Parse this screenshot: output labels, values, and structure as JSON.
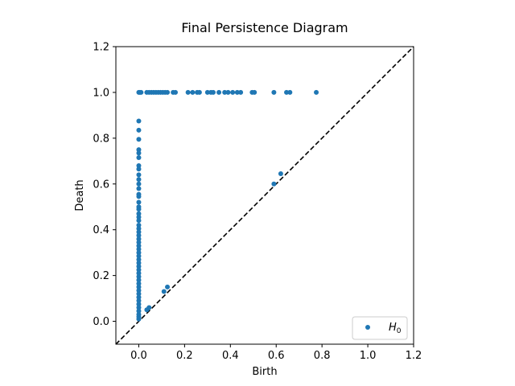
{
  "chart_data": {
    "type": "scatter",
    "title": "Final Persistence Diagram",
    "xlabel": "Birth",
    "ylabel": "Death",
    "xlim": [
      -0.1,
      1.2
    ],
    "ylim": [
      -0.1,
      1.2
    ],
    "xticks": [
      "0.0",
      "0.2",
      "0.4",
      "0.6",
      "0.8",
      "1.0",
      "1.2"
    ],
    "yticks": [
      "0.0",
      "0.2",
      "0.4",
      "0.6",
      "0.8",
      "1.0",
      "1.2"
    ],
    "grid": false,
    "diagonal": {
      "style": "dashed",
      "color": "#000000"
    },
    "legend": {
      "position": "lower-right",
      "label": "H",
      "subscript": "0"
    },
    "series": [
      {
        "name": "H0",
        "color": "#1f77b4",
        "points": [
          [
            0.0,
            1.0
          ],
          [
            0.005,
            1.0
          ],
          [
            0.01,
            1.0
          ],
          [
            0.035,
            1.0
          ],
          [
            0.045,
            1.0
          ],
          [
            0.055,
            1.0
          ],
          [
            0.065,
            1.0
          ],
          [
            0.075,
            1.0
          ],
          [
            0.085,
            1.0
          ],
          [
            0.095,
            1.0
          ],
          [
            0.105,
            1.0
          ],
          [
            0.115,
            1.0
          ],
          [
            0.125,
            1.0
          ],
          [
            0.15,
            1.0
          ],
          [
            0.16,
            1.0
          ],
          [
            0.215,
            1.0
          ],
          [
            0.235,
            1.0
          ],
          [
            0.255,
            1.0
          ],
          [
            0.265,
            1.0
          ],
          [
            0.3,
            1.0
          ],
          [
            0.315,
            1.0
          ],
          [
            0.325,
            1.0
          ],
          [
            0.35,
            1.0
          ],
          [
            0.375,
            1.0
          ],
          [
            0.39,
            1.0
          ],
          [
            0.41,
            1.0
          ],
          [
            0.43,
            1.0
          ],
          [
            0.445,
            1.0
          ],
          [
            0.495,
            1.0
          ],
          [
            0.505,
            1.0
          ],
          [
            0.59,
            1.0
          ],
          [
            0.645,
            1.0
          ],
          [
            0.66,
            1.0
          ],
          [
            0.775,
            1.0
          ],
          [
            0.0,
            0.875
          ],
          [
            0.0,
            0.835
          ],
          [
            0.0,
            0.795
          ],
          [
            0.0,
            0.75
          ],
          [
            0.0,
            0.735
          ],
          [
            0.0,
            0.715
          ],
          [
            0.0,
            0.68
          ],
          [
            0.0,
            0.665
          ],
          [
            0.0,
            0.64
          ],
          [
            0.0,
            0.62
          ],
          [
            0.0,
            0.6
          ],
          [
            0.0,
            0.58
          ],
          [
            0.0,
            0.555
          ],
          [
            0.0,
            0.545
          ],
          [
            0.0,
            0.52
          ],
          [
            0.0,
            0.5
          ],
          [
            0.0,
            0.49
          ],
          [
            0.0,
            0.47
          ],
          [
            0.0,
            0.455
          ],
          [
            0.0,
            0.44
          ],
          [
            0.0,
            0.42
          ],
          [
            0.0,
            0.405
          ],
          [
            0.0,
            0.39
          ],
          [
            0.0,
            0.375
          ],
          [
            0.0,
            0.36
          ],
          [
            0.0,
            0.345
          ],
          [
            0.0,
            0.33
          ],
          [
            0.0,
            0.315
          ],
          [
            0.0,
            0.3
          ],
          [
            0.0,
            0.285
          ],
          [
            0.0,
            0.27
          ],
          [
            0.0,
            0.255
          ],
          [
            0.0,
            0.24
          ],
          [
            0.0,
            0.225
          ],
          [
            0.0,
            0.21
          ],
          [
            0.0,
            0.195
          ],
          [
            0.0,
            0.18
          ],
          [
            0.0,
            0.165
          ],
          [
            0.0,
            0.15
          ],
          [
            0.0,
            0.135
          ],
          [
            0.0,
            0.12
          ],
          [
            0.0,
            0.105
          ],
          [
            0.0,
            0.09
          ],
          [
            0.0,
            0.075
          ],
          [
            0.0,
            0.06
          ],
          [
            0.0,
            0.045
          ],
          [
            0.0,
            0.03
          ],
          [
            0.0,
            0.02
          ],
          [
            0.0,
            0.01
          ],
          [
            0.035,
            0.05
          ],
          [
            0.045,
            0.06
          ],
          [
            0.11,
            0.13
          ],
          [
            0.125,
            0.15
          ],
          [
            0.59,
            0.6
          ],
          [
            0.62,
            0.645
          ]
        ]
      }
    ]
  }
}
